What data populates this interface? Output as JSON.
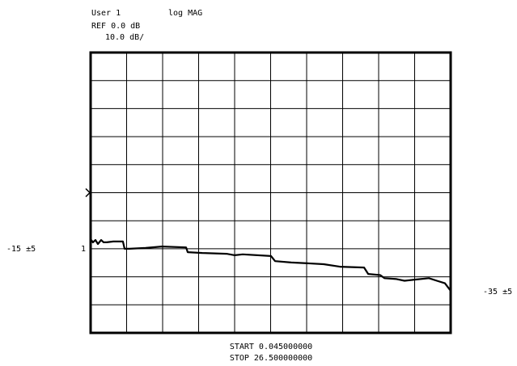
{
  "chart_data": {
    "type": "line",
    "channel": "User 1",
    "format": "log MAG",
    "ref_label": "REF 0.0 dB",
    "scale_label": "10.0 dB/",
    "left_limit": "-15 ±5",
    "right_limit": "-35 ±5",
    "marker_label": "1",
    "start_label": "START 0.045000000",
    "stop_label": "STOP 26.500000000",
    "reference": 0,
    "xlim": [
      0.045,
      26.5
    ],
    "xticks": [
      0.045,
      2.6905,
      5.336,
      7.9815,
      10.627,
      13.2725,
      15.918,
      18.5635,
      21.209,
      23.8545,
      26.5
    ],
    "ylim": [
      -50,
      50
    ],
    "yticks": [
      -50,
      -40,
      -30,
      -20,
      -10,
      0,
      10,
      20,
      30,
      40,
      50
    ],
    "grid": true,
    "series": [
      {
        "color": "#000000",
        "x": [
          0.045,
          0.22,
          0.4,
          0.58,
          0.82,
          1.0,
          1.23,
          1.71,
          2.42,
          2.54,
          2.9,
          4.09,
          5.28,
          7.06,
          7.18,
          8.25,
          10.03,
          10.63,
          11.22,
          13.3,
          13.6,
          14.79,
          15.98,
          17.17,
          18.36,
          20.14,
          20.44,
          21.33,
          21.63,
          22.52,
          23.11,
          23.71,
          24.9,
          25.49,
          26.08,
          26.5
        ],
        "values": [
          -16.6,
          -17.7,
          -16.9,
          -18.3,
          -16.9,
          -17.7,
          -17.7,
          -17.4,
          -17.4,
          -20.0,
          -20.0,
          -19.7,
          -19.2,
          -19.5,
          -21.2,
          -21.5,
          -21.8,
          -22.3,
          -22.0,
          -22.6,
          -24.4,
          -24.9,
          -25.2,
          -25.5,
          -26.4,
          -26.7,
          -29.0,
          -29.4,
          -30.5,
          -30.8,
          -31.4,
          -31.1,
          -30.5,
          -31.4,
          -32.3,
          -35.0
        ]
      }
    ]
  }
}
